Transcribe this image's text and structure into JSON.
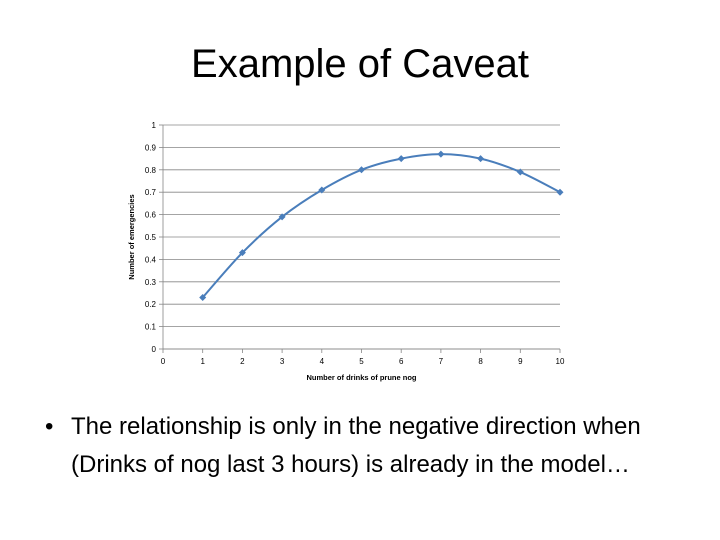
{
  "slide": {
    "title": "Example of Caveat",
    "bullets": [
      "The relationship is only in the negative direction when (Drinks of nog last 3 hours) is already in the model…"
    ]
  },
  "chart_data": {
    "type": "line",
    "title": "",
    "xlabel": "Number of drinks of prune nog",
    "ylabel": "Number of emergencies",
    "xlim": [
      0,
      10
    ],
    "ylim": [
      0,
      1
    ],
    "x_ticks": [
      "0",
      "1",
      "2",
      "3",
      "4",
      "5",
      "6",
      "7",
      "8",
      "9",
      "10"
    ],
    "y_ticks": [
      "0",
      "0.1",
      "0.2",
      "0.3",
      "0.4",
      "0.5",
      "0.6",
      "0.7",
      "0.8",
      "0.9",
      "1"
    ],
    "grid": true,
    "smooth": true,
    "series": [
      {
        "name": "",
        "x": [
          1,
          2,
          3,
          4,
          5,
          6,
          7,
          8,
          9,
          10
        ],
        "values": [
          0.23,
          0.43,
          0.59,
          0.71,
          0.8,
          0.85,
          0.87,
          0.85,
          0.79,
          0.7
        ],
        "color": "#4a7ebb"
      }
    ]
  }
}
